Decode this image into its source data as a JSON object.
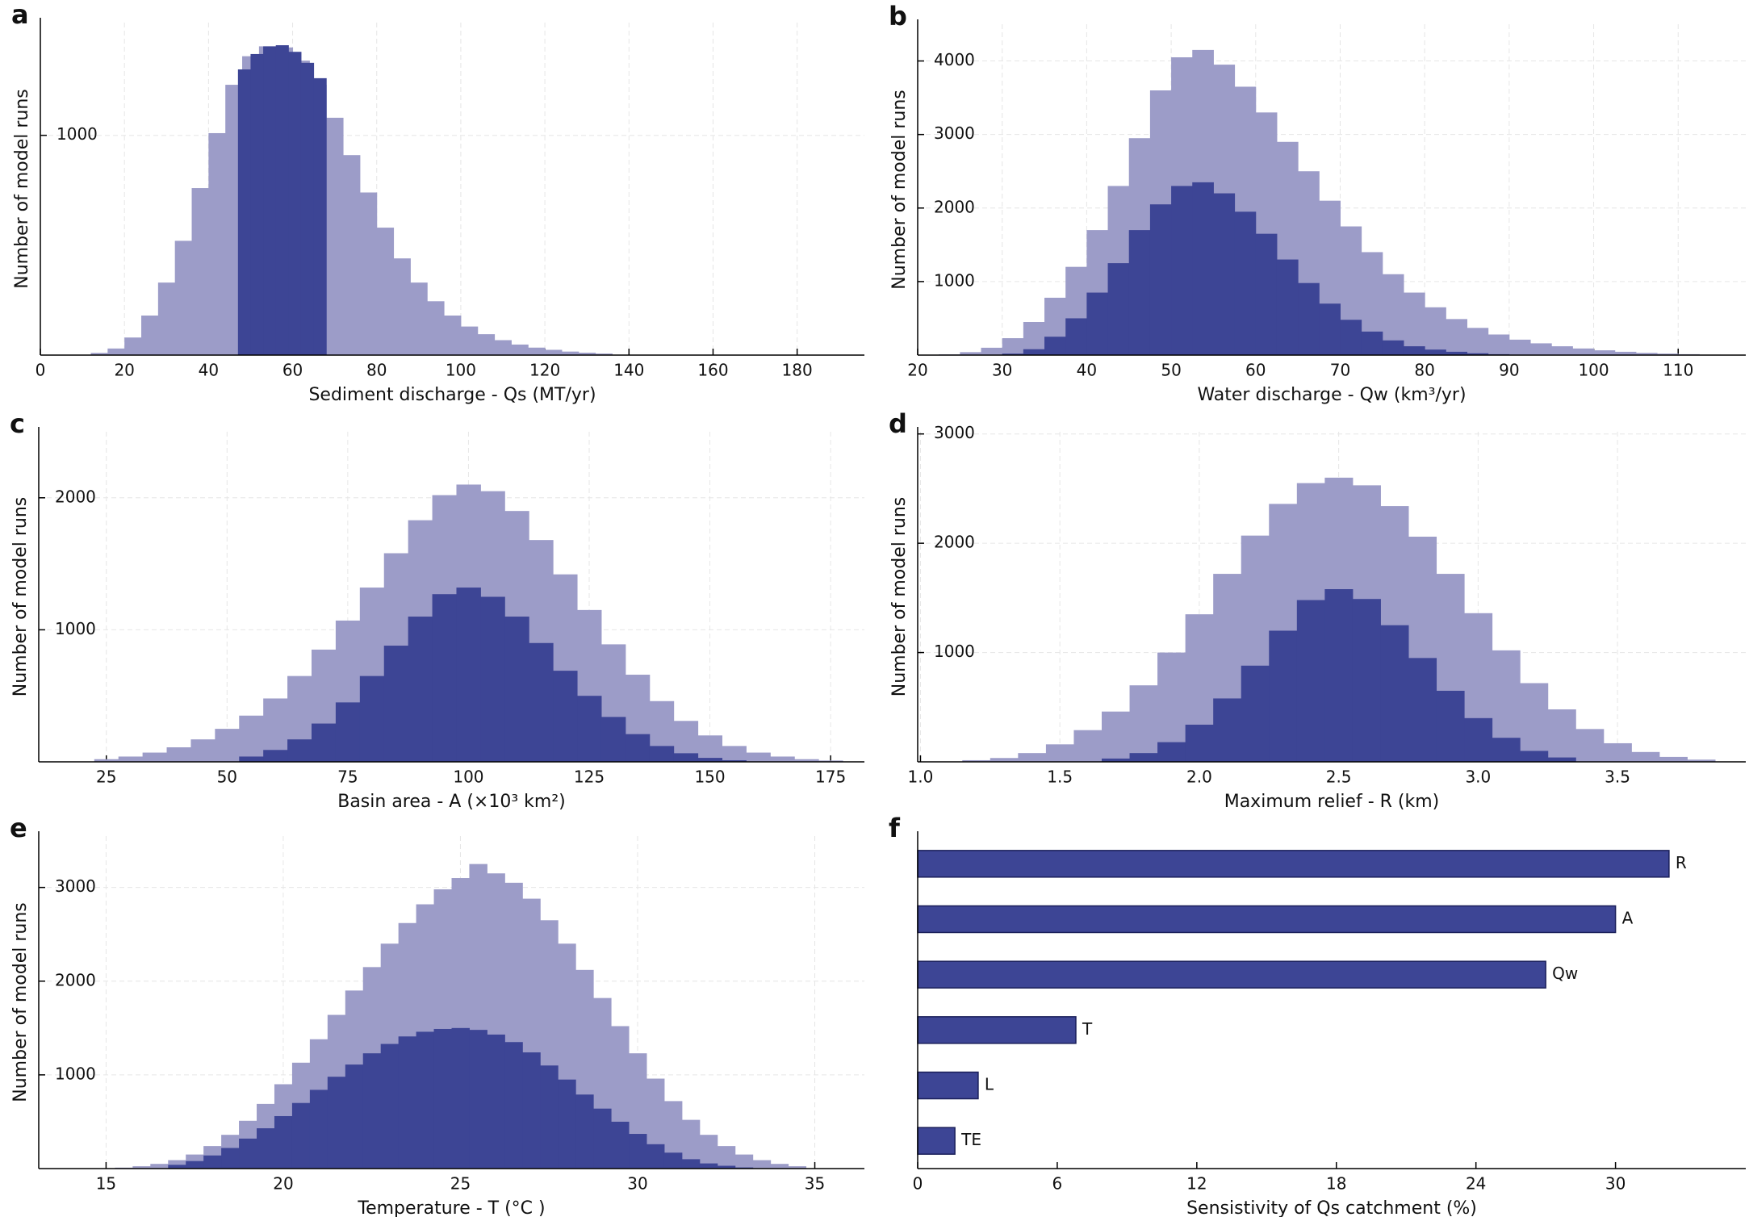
{
  "chart_data": [
    {
      "type": "histogram",
      "panel_label": "a",
      "xlabel": "Sediment discharge - Qs (MT/yr)",
      "ylabel": "Number of model runs",
      "xlim": [
        0,
        196
      ],
      "ylim": [
        0,
        1513
      ],
      "xticks": [
        0,
        20,
        40,
        60,
        80,
        100,
        120,
        140,
        160,
        180
      ],
      "yticks": [
        1000
      ],
      "grid": true,
      "series": [
        {
          "color": "#9c9cc8",
          "bins": [
            12,
            16,
            20,
            24,
            28,
            32,
            36,
            40,
            44,
            48,
            52,
            56,
            60,
            64,
            68,
            72,
            76,
            80,
            84,
            88,
            92,
            96,
            100,
            104,
            108,
            112,
            116,
            120,
            124,
            128,
            132,
            136
          ],
          "values": [
            10,
            30,
            80,
            180,
            330,
            520,
            760,
            1010,
            1230,
            1360,
            1405,
            1400,
            1340,
            1230,
            1080,
            910,
            740,
            580,
            440,
            330,
            245,
            180,
            130,
            95,
            68,
            48,
            34,
            24,
            16,
            11,
            7
          ]
        },
        {
          "color": "#3d4595",
          "bins": [
            47,
            50,
            53,
            56,
            59,
            62,
            65,
            68
          ],
          "values": [
            1300,
            1370,
            1405,
            1410,
            1380,
            1330,
            1260
          ]
        }
      ]
    },
    {
      "type": "histogram",
      "panel_label": "b",
      "xlabel": "Water discharge - Qw (km³/yr)",
      "ylabel": "Number of model runs",
      "xlim": [
        20,
        118
      ],
      "ylim": [
        0,
        4500
      ],
      "xticks": [
        20,
        30,
        40,
        50,
        60,
        70,
        80,
        90,
        100,
        110
      ],
      "yticks": [
        1000,
        2000,
        3000,
        4000
      ],
      "grid": true,
      "series": [
        {
          "color": "#9c9cc8",
          "bins": [
            22.5,
            25,
            27.5,
            30,
            32.5,
            35,
            37.5,
            40,
            42.5,
            45,
            47.5,
            50,
            52.5,
            55,
            57.5,
            60,
            62.5,
            65,
            67.5,
            70,
            72.5,
            75,
            77.5,
            80,
            82.5,
            85,
            87.5,
            90,
            92.5,
            95,
            97.5,
            100,
            102.5,
            105,
            107.5,
            110,
            112.5,
            115
          ],
          "values": [
            10,
            40,
            100,
            230,
            450,
            780,
            1200,
            1700,
            2300,
            2950,
            3600,
            4050,
            4150,
            3950,
            3650,
            3300,
            2900,
            2500,
            2100,
            1750,
            1400,
            1100,
            850,
            650,
            490,
            370,
            280,
            210,
            160,
            120,
            90,
            65,
            45,
            30,
            20,
            12,
            6
          ]
        },
        {
          "color": "#3d4595",
          "bins": [
            30,
            32.5,
            35,
            37.5,
            40,
            42.5,
            45,
            47.5,
            50,
            52.5,
            55,
            57.5,
            60,
            62.5,
            65,
            67.5,
            70,
            72.5,
            75,
            77.5,
            80,
            82.5,
            85,
            87.5,
            90
          ],
          "values": [
            20,
            80,
            250,
            500,
            850,
            1250,
            1700,
            2050,
            2300,
            2350,
            2200,
            1950,
            1650,
            1300,
            980,
            700,
            480,
            320,
            200,
            120,
            75,
            45,
            25,
            12
          ]
        }
      ]
    },
    {
      "type": "histogram",
      "panel_label": "c",
      "xlabel": "Basin area - A (×10³ km²)",
      "ylabel": "Number of model runs",
      "xlim": [
        11,
        182
      ],
      "ylim": [
        0,
        2500
      ],
      "xticks": [
        25,
        50,
        75,
        100,
        125,
        150,
        175
      ],
      "yticks": [
        1000,
        2000
      ],
      "grid": true,
      "series": [
        {
          "color": "#9c9cc8",
          "bins": [
            22.5,
            27.5,
            32.5,
            37.5,
            42.5,
            47.5,
            52.5,
            57.5,
            62.5,
            67.5,
            72.5,
            77.5,
            82.5,
            87.5,
            92.5,
            97.5,
            102.5,
            107.5,
            112.5,
            117.5,
            122.5,
            127.5,
            132.5,
            137.5,
            142.5,
            147.5,
            152.5,
            157.5,
            162.5,
            167.5,
            172.5,
            177.5
          ],
          "values": [
            20,
            40,
            70,
            110,
            170,
            250,
            350,
            480,
            650,
            850,
            1070,
            1320,
            1580,
            1830,
            2020,
            2100,
            2050,
            1900,
            1680,
            1420,
            1150,
            890,
            660,
            460,
            310,
            200,
            120,
            70,
            40,
            20,
            10
          ]
        },
        {
          "color": "#3d4595",
          "bins": [
            52.5,
            57.5,
            62.5,
            67.5,
            72.5,
            77.5,
            82.5,
            87.5,
            92.5,
            97.5,
            102.5,
            107.5,
            112.5,
            117.5,
            122.5,
            127.5,
            132.5,
            137.5,
            142.5,
            147.5,
            152.5,
            157.5
          ],
          "values": [
            40,
            90,
            170,
            290,
            450,
            650,
            880,
            1100,
            1270,
            1320,
            1250,
            1100,
            900,
            690,
            500,
            340,
            210,
            120,
            65,
            30,
            12
          ]
        }
      ]
    },
    {
      "type": "histogram",
      "panel_label": "d",
      "xlabel": "Maximum relief - R (km)",
      "ylabel": "Number of model runs",
      "xlim": [
        0.99,
        3.96
      ],
      "ylim": [
        0,
        3020
      ],
      "xticks": [
        {
          "value": 1,
          "label": "1.0"
        },
        1.5,
        {
          "value": 2,
          "label": "2.0"
        },
        2.5,
        {
          "value": 3,
          "label": "3.0"
        },
        3.5
      ],
      "yticks": [
        1000,
        2000,
        3000
      ],
      "grid": true,
      "series": [
        {
          "color": "#9c9cc8",
          "bins": [
            1.15,
            1.25,
            1.35,
            1.45,
            1.55,
            1.65,
            1.75,
            1.85,
            1.95,
            2.05,
            2.15,
            2.25,
            2.35,
            2.45,
            2.55,
            2.65,
            2.75,
            2.85,
            2.95,
            3.05,
            3.15,
            3.25,
            3.35,
            3.45,
            3.55,
            3.65,
            3.75,
            3.85
          ],
          "values": [
            15,
            35,
            80,
            160,
            290,
            460,
            700,
            1000,
            1350,
            1720,
            2070,
            2360,
            2550,
            2600,
            2530,
            2340,
            2060,
            1720,
            1360,
            1020,
            720,
            480,
            300,
            170,
            90,
            45,
            20
          ]
        },
        {
          "color": "#3d4595",
          "bins": [
            1.65,
            1.75,
            1.85,
            1.95,
            2.05,
            2.15,
            2.25,
            2.35,
            2.45,
            2.55,
            2.65,
            2.75,
            2.85,
            2.95,
            3.05,
            3.15,
            3.25,
            3.35
          ],
          "values": [
            30,
            80,
            180,
            340,
            580,
            880,
            1200,
            1480,
            1580,
            1490,
            1250,
            950,
            650,
            400,
            220,
            100,
            40
          ]
        }
      ]
    },
    {
      "type": "histogram",
      "panel_label": "e",
      "xlabel": "Temperature - T (°C )",
      "ylabel": "Number of model runs",
      "xlim": [
        13.1,
        36.4
      ],
      "ylim": [
        0,
        3548
      ],
      "xticks": [
        15,
        20,
        25,
        30,
        35
      ],
      "yticks": [
        1000,
        2000,
        3000
      ],
      "grid": true,
      "series": [
        {
          "color": "#9c9cc8",
          "bins": [
            15.25,
            15.75,
            16.25,
            16.75,
            17.25,
            17.75,
            18.25,
            18.75,
            19.25,
            19.75,
            20.25,
            20.75,
            21.25,
            21.75,
            22.25,
            22.75,
            23.25,
            23.75,
            24.25,
            24.75,
            25.25,
            25.75,
            26.25,
            26.75,
            27.25,
            27.75,
            28.25,
            28.75,
            29.25,
            29.75,
            30.25,
            30.75,
            31.25,
            31.75,
            32.25,
            32.75,
            33.25,
            33.75,
            34.25,
            34.75
          ],
          "values": [
            10,
            25,
            50,
            90,
            150,
            240,
            360,
            510,
            690,
            900,
            1130,
            1380,
            1640,
            1900,
            2150,
            2400,
            2620,
            2820,
            2980,
            3100,
            3250,
            3150,
            3050,
            2880,
            2650,
            2400,
            2120,
            1820,
            1520,
            1230,
            960,
            720,
            520,
            360,
            240,
            150,
            90,
            50,
            25
          ]
        },
        {
          "color": "#3d4595",
          "bins": [
            16.75,
            17.25,
            17.75,
            18.25,
            18.75,
            19.25,
            19.75,
            20.25,
            20.75,
            21.25,
            21.75,
            22.25,
            22.75,
            23.25,
            23.75,
            24.25,
            24.75,
            25.25,
            25.75,
            26.25,
            26.75,
            27.25,
            27.75,
            28.25,
            28.75,
            29.25,
            29.75,
            30.25,
            30.75,
            31.25,
            31.75,
            32.25,
            32.75,
            33.25
          ],
          "values": [
            40,
            80,
            140,
            220,
            320,
            430,
            560,
            700,
            840,
            980,
            1110,
            1230,
            1330,
            1410,
            1460,
            1490,
            1500,
            1480,
            1430,
            1350,
            1240,
            1100,
            950,
            790,
            640,
            500,
            370,
            260,
            170,
            100,
            55,
            30,
            12
          ]
        }
      ]
    },
    {
      "type": "barh",
      "panel_label": "f",
      "xlabel": "Sensistivity of Qs catchment (%)",
      "categories": [
        "R",
        "A",
        "Qw",
        "T",
        "L",
        "TE"
      ],
      "values": [
        32.3,
        30.0,
        27.0,
        6.8,
        2.6,
        1.6
      ],
      "color": "#3d4595",
      "xlim": [
        0,
        35.6
      ],
      "xticks": [
        0,
        6,
        12,
        18,
        24,
        30
      ]
    }
  ]
}
